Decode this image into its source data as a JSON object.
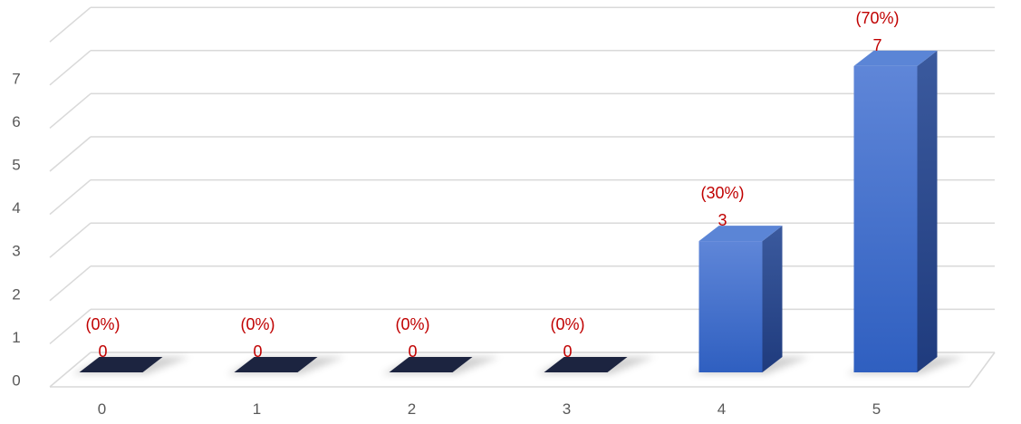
{
  "chart_data": {
    "type": "bar",
    "title": "",
    "xlabel": "",
    "ylabel": "",
    "categories": [
      "0",
      "1",
      "2",
      "3",
      "4",
      "5"
    ],
    "values": [
      0,
      0,
      0,
      0,
      3,
      7
    ],
    "percent_labels": [
      "(0%)",
      "(0%)",
      "(0%)",
      "(0%)",
      "(30%)",
      "(70%)"
    ],
    "value_labels": [
      "0",
      "0",
      "0",
      "0",
      "3",
      "7"
    ],
    "y_ticks": [
      "0",
      "1",
      "2",
      "3",
      "4",
      "5",
      "6",
      "7"
    ],
    "ylim": [
      0,
      8
    ],
    "grid": true,
    "legend": "none",
    "style": "3d-column",
    "colors": {
      "bar_front": "#3a6cc9",
      "bar_side": "#23438a",
      "bar_top": "#5b85d6",
      "zero_bar": "#1c2440",
      "grid": "#d9d9d9",
      "label": "#c00000",
      "tick": "#595959"
    }
  }
}
